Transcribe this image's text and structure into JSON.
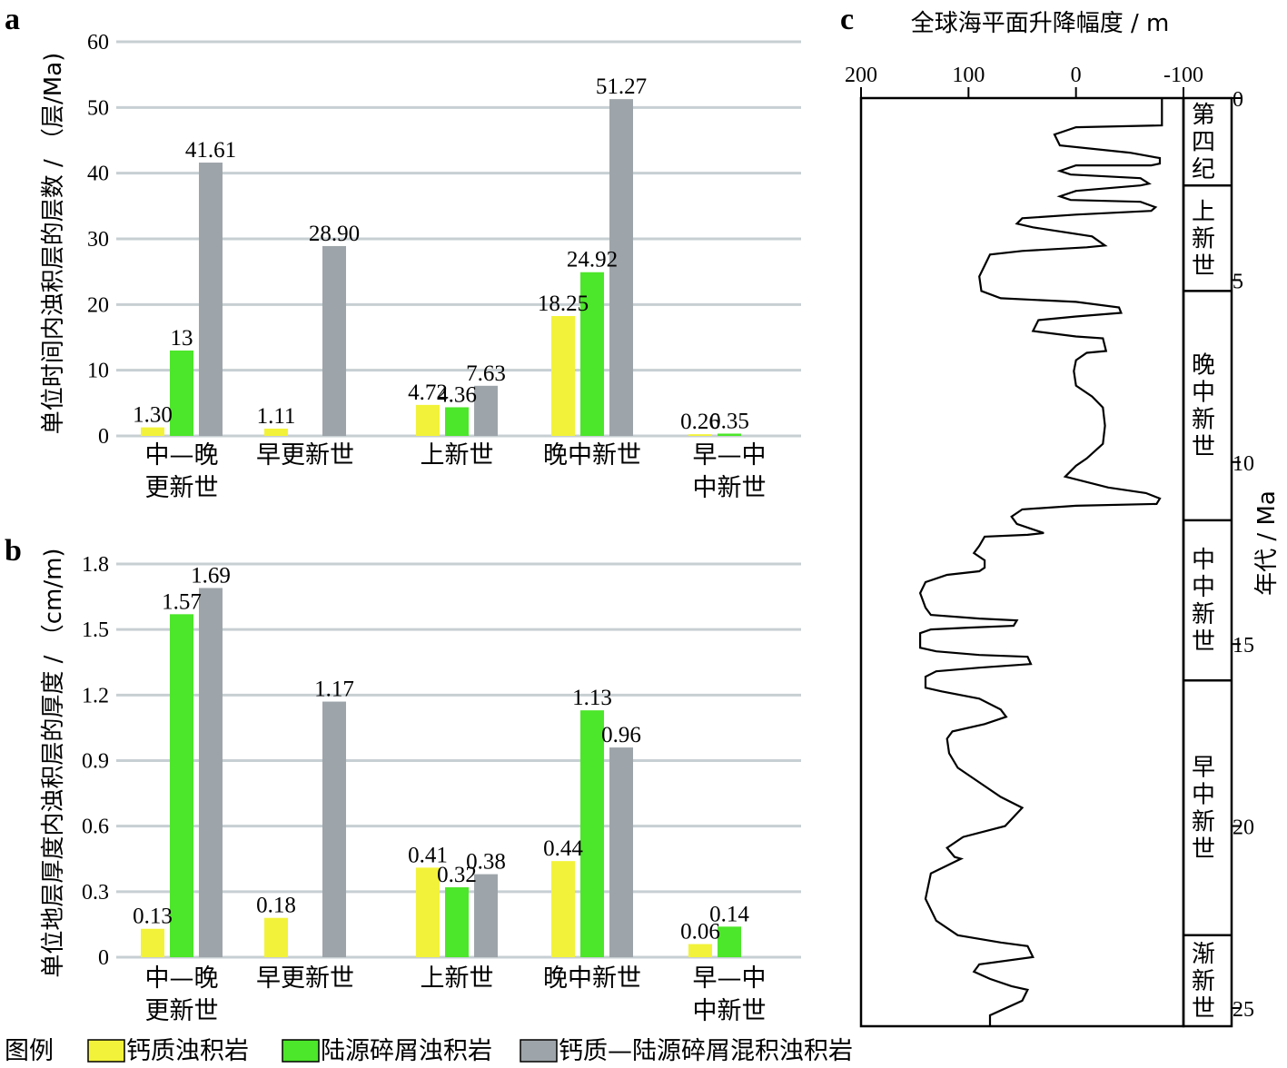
{
  "colors": {
    "calcareous": "#f2f23a",
    "terrigenous": "#4ce62a",
    "mixed": "#9ea5aa",
    "grid": "#c7cfd3"
  },
  "legend": {
    "title": "图例",
    "items": [
      "钙质浊积岩",
      "陆源碎屑浊积岩",
      "钙质—陆源碎屑混积浊积岩"
    ]
  },
  "chart_data": [
    {
      "type": "bar",
      "panel": "a",
      "ylabel": "单位时间内浊积层的层数 / （层/Ma)",
      "ylim": [
        0,
        60
      ],
      "yticks": [
        "0",
        "10",
        "20",
        "30",
        "40",
        "50",
        "60"
      ],
      "categories": [
        [
          "中—晚",
          "更新世"
        ],
        [
          "早更新世"
        ],
        [
          "上新世"
        ],
        [
          "晚中新世"
        ],
        [
          "早—中",
          "中新世"
        ]
      ],
      "series": [
        {
          "name": "钙质浊积岩",
          "values": [
            1.3,
            1.11,
            4.72,
            18.25,
            0.26
          ],
          "labels": [
            "1.30",
            "1.11",
            "4.72",
            "18.25",
            "0.26"
          ]
        },
        {
          "name": "陆源碎屑浊积岩",
          "values": [
            13,
            null,
            4.36,
            24.92,
            0.35
          ],
          "labels": [
            "13",
            "",
            "4.36",
            "24.92",
            "0.35"
          ]
        },
        {
          "name": "钙质—陆源碎屑混积浊积岩",
          "values": [
            41.61,
            28.9,
            7.63,
            51.27,
            null
          ],
          "labels": [
            "41.61",
            "28.90",
            "7.63",
            "51.27",
            ""
          ]
        }
      ]
    },
    {
      "type": "bar",
      "panel": "b",
      "ylabel": "单位地层厚度内浊积层的厚度 / （cm/m)",
      "ylim": [
        0,
        1.8
      ],
      "yticks": [
        "0",
        "0.3",
        "0.6",
        "0.9",
        "1.2",
        "1.5",
        "1.8"
      ],
      "categories": [
        [
          "中—晚",
          "更新世"
        ],
        [
          "早更新世"
        ],
        [
          "上新世"
        ],
        [
          "晚中新世"
        ],
        [
          "早—中",
          "中新世"
        ]
      ],
      "series": [
        {
          "name": "钙质浊积岩",
          "values": [
            0.13,
            0.18,
            0.41,
            0.44,
            0.06
          ],
          "labels": [
            "0.13",
            "0.18",
            "0.41",
            "0.44",
            "0.06"
          ]
        },
        {
          "name": "陆源碎屑浊积岩",
          "values": [
            1.57,
            null,
            0.32,
            1.13,
            0.14
          ],
          "labels": [
            "1.57",
            "",
            "0.32",
            "1.13",
            "0.14"
          ]
        },
        {
          "name": "钙质—陆源碎屑混积浊积岩",
          "values": [
            1.69,
            1.17,
            0.38,
            0.96,
            null
          ],
          "labels": [
            "1.69",
            "1.17",
            "0.38",
            "0.96",
            ""
          ]
        }
      ]
    },
    {
      "type": "line",
      "panel": "c",
      "title": "全球海平面升降幅度 / m",
      "xlim": [
        200,
        -100
      ],
      "xticks": [
        "200",
        "100",
        "0",
        "-100"
      ],
      "ylabel": "年代 / Ma",
      "ylim": [
        0,
        25.5
      ],
      "yticks": [
        "0",
        "5",
        "10",
        "15",
        "20",
        "25"
      ],
      "epochs": [
        {
          "label": [
            "第",
            "四",
            "纪"
          ],
          "start": 0,
          "end": 2.4
        },
        {
          "label": [
            "上",
            "新",
            "世"
          ],
          "start": 2.4,
          "end": 5.3
        },
        {
          "label": [
            "晚",
            "中",
            "新",
            "世"
          ],
          "start": 5.3,
          "end": 11.6
        },
        {
          "label": [
            "中",
            "中",
            "新",
            "世"
          ],
          "start": 11.6,
          "end": 16
        },
        {
          "label": [
            "早",
            "中",
            "新",
            "世"
          ],
          "start": 16,
          "end": 23
        },
        {
          "label": [
            "渐",
            "新",
            "世"
          ],
          "start": 23,
          "end": 25.5
        }
      ],
      "points": [
        [
          -80,
          0
        ],
        [
          -80,
          0.75
        ],
        [
          0,
          0.8
        ],
        [
          20,
          1.0
        ],
        [
          15,
          1.3
        ],
        [
          -50,
          1.5
        ],
        [
          -78,
          1.65
        ],
        [
          -78,
          1.8
        ],
        [
          -70,
          1.85
        ],
        [
          0,
          1.85
        ],
        [
          15,
          2.0
        ],
        [
          5,
          2.1
        ],
        [
          -60,
          2.2
        ],
        [
          -68,
          2.35
        ],
        [
          -60,
          2.4
        ],
        [
          0,
          2.55
        ],
        [
          15,
          2.7
        ],
        [
          5,
          2.8
        ],
        [
          -60,
          2.85
        ],
        [
          -74,
          3.0
        ],
        [
          -70,
          3.1
        ],
        [
          0,
          3.2
        ],
        [
          50,
          3.3
        ],
        [
          55,
          3.45
        ],
        [
          40,
          3.55
        ],
        [
          -15,
          3.8
        ],
        [
          -27,
          4.05
        ],
        [
          -10,
          4.1
        ],
        [
          50,
          4.2
        ],
        [
          80,
          4.3
        ],
        [
          85,
          4.6
        ],
        [
          90,
          4.9
        ],
        [
          88,
          5.3
        ],
        [
          70,
          5.5
        ],
        [
          0,
          5.6
        ],
        [
          -40,
          5.75
        ],
        [
          -42,
          5.9
        ],
        [
          0,
          6.0
        ],
        [
          35,
          6.1
        ],
        [
          40,
          6.4
        ],
        [
          0,
          6.55
        ],
        [
          -25,
          6.6
        ],
        [
          -28,
          6.95
        ],
        [
          -10,
          7.0
        ],
        [
          0,
          7.2
        ],
        [
          2,
          7.5
        ],
        [
          0,
          7.9
        ],
        [
          -15,
          8.2
        ],
        [
          -25,
          8.5
        ],
        [
          -27,
          9.0
        ],
        [
          -25,
          9.5
        ],
        [
          -10,
          9.9
        ],
        [
          0,
          10.1
        ],
        [
          10,
          10.4
        ],
        [
          -30,
          10.7
        ],
        [
          -65,
          10.85
        ],
        [
          -78,
          11.0
        ],
        [
          -75,
          11.15
        ],
        [
          0,
          11.2
        ],
        [
          50,
          11.3
        ],
        [
          60,
          11.5
        ],
        [
          55,
          11.7
        ],
        [
          40,
          11.85
        ],
        [
          30,
          11.95
        ],
        [
          45,
          12.0
        ],
        [
          85,
          12.05
        ],
        [
          90,
          12.3
        ],
        [
          95,
          12.5
        ],
        [
          85,
          12.7
        ],
        [
          85,
          12.9
        ],
        [
          90,
          13.0
        ],
        [
          120,
          13.1
        ],
        [
          140,
          13.3
        ],
        [
          145,
          13.6
        ],
        [
          140,
          14.0
        ],
        [
          135,
          14.2
        ],
        [
          90,
          14.3
        ],
        [
          55,
          14.35
        ],
        [
          58,
          14.5
        ],
        [
          100,
          14.55
        ],
        [
          135,
          14.6
        ],
        [
          145,
          14.7
        ],
        [
          145,
          15.1
        ],
        [
          130,
          15.2
        ],
        [
          90,
          15.3
        ],
        [
          45,
          15.35
        ],
        [
          42,
          15.55
        ],
        [
          90,
          15.65
        ],
        [
          130,
          15.75
        ],
        [
          140,
          15.9
        ],
        [
          140,
          16.2
        ],
        [
          125,
          16.3
        ],
        [
          90,
          16.5
        ],
        [
          70,
          16.8
        ],
        [
          65,
          17.0
        ],
        [
          85,
          17.2
        ],
        [
          115,
          17.4
        ],
        [
          120,
          17.6
        ],
        [
          118,
          18.0
        ],
        [
          110,
          18.4
        ],
        [
          90,
          18.8
        ],
        [
          70,
          19.2
        ],
        [
          50,
          19.5
        ],
        [
          66,
          20.0
        ],
        [
          105,
          20.3
        ],
        [
          120,
          20.6
        ],
        [
          113,
          20.85
        ],
        [
          107,
          20.9
        ],
        [
          135,
          21.3
        ],
        [
          140,
          22.0
        ],
        [
          130,
          22.6
        ],
        [
          110,
          23.0
        ],
        [
          70,
          23.2
        ],
        [
          45,
          23.3
        ],
        [
          40,
          23.6
        ],
        [
          90,
          23.8
        ],
        [
          95,
          24.0
        ],
        [
          80,
          24.2
        ],
        [
          60,
          24.4
        ],
        [
          45,
          24.5
        ],
        [
          50,
          24.8
        ],
        [
          80,
          25.2
        ],
        [
          80,
          25.5
        ]
      ]
    }
  ]
}
